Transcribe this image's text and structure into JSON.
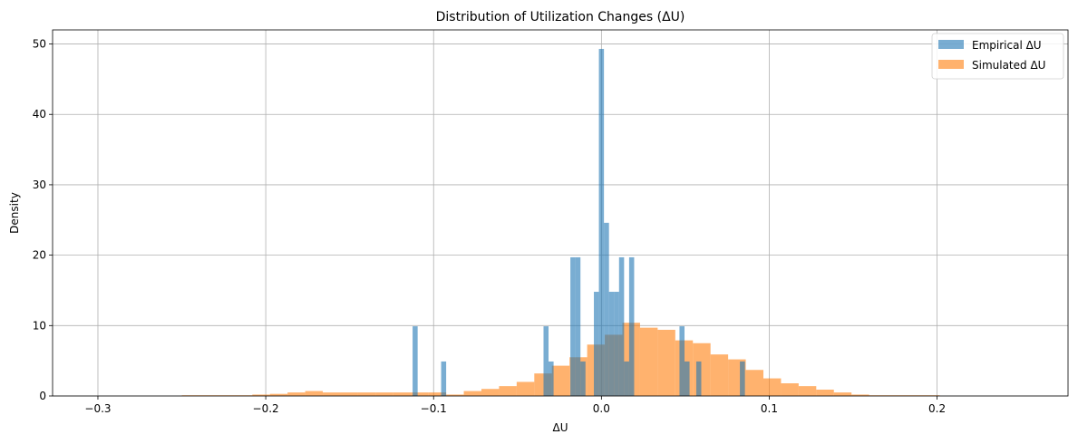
{
  "chart_data": {
    "type": "bar",
    "title": "Distribution of Utilization Changes (ΔU)",
    "xlabel": "ΔU",
    "ylabel": "Density",
    "xlim": [
      -0.327,
      0.278
    ],
    "ylim": [
      0,
      52
    ],
    "xticks": [
      -0.3,
      -0.2,
      -0.1,
      0.0,
      0.1,
      0.2
    ],
    "xtick_labels": [
      "−0.3",
      "−0.2",
      "−0.1",
      "0.0",
      "0.1",
      "0.2"
    ],
    "yticks": [
      0,
      10,
      20,
      30,
      40,
      50
    ],
    "ytick_labels": [
      "0",
      "10",
      "20",
      "30",
      "40",
      "50"
    ],
    "grid": true,
    "legend_position": "top-right",
    "series": [
      {
        "name": "Empirical ΔU",
        "color": "#1f77b4",
        "alpha": 0.6,
        "bins": [
          {
            "x0": -0.1125,
            "x1": -0.1095,
            "value": 9.9
          },
          {
            "x0": -0.0955,
            "x1": -0.0925,
            "value": 4.9
          },
          {
            "x0": -0.0345,
            "x1": -0.0315,
            "value": 9.9
          },
          {
            "x0": -0.0315,
            "x1": -0.0285,
            "value": 4.9
          },
          {
            "x0": -0.0185,
            "x1": -0.0155,
            "value": 19.7
          },
          {
            "x0": -0.0155,
            "x1": -0.0125,
            "value": 19.7
          },
          {
            "x0": -0.0125,
            "x1": -0.0095,
            "value": 4.9
          },
          {
            "x0": -0.0045,
            "x1": -0.0015,
            "value": 14.8
          },
          {
            "x0": -0.0015,
            "x1": 0.0015,
            "value": 49.3
          },
          {
            "x0": 0.0015,
            "x1": 0.0045,
            "value": 24.6
          },
          {
            "x0": 0.0045,
            "x1": 0.0075,
            "value": 14.8
          },
          {
            "x0": 0.0075,
            "x1": 0.0105,
            "value": 14.8
          },
          {
            "x0": 0.0105,
            "x1": 0.0135,
            "value": 19.7
          },
          {
            "x0": 0.0135,
            "x1": 0.0165,
            "value": 4.9
          },
          {
            "x0": 0.0165,
            "x1": 0.0195,
            "value": 19.7
          },
          {
            "x0": 0.0465,
            "x1": 0.0495,
            "value": 9.9
          },
          {
            "x0": 0.0495,
            "x1": 0.0525,
            "value": 4.9
          },
          {
            "x0": 0.0565,
            "x1": 0.0595,
            "value": 4.9
          },
          {
            "x0": 0.0825,
            "x1": 0.0855,
            "value": 4.9
          }
        ]
      },
      {
        "name": "Simulated ΔU",
        "color": "#ff7f0e",
        "alpha": 0.6,
        "bins": [
          {
            "x0": -0.25,
            "x1": -0.2395,
            "value": 0.1
          },
          {
            "x0": -0.2395,
            "x1": -0.229,
            "value": 0.1
          },
          {
            "x0": -0.229,
            "x1": -0.2185,
            "value": 0.1
          },
          {
            "x0": -0.2185,
            "x1": -0.208,
            "value": 0.1
          },
          {
            "x0": -0.208,
            "x1": -0.1975,
            "value": 0.2
          },
          {
            "x0": -0.1975,
            "x1": -0.187,
            "value": 0.3
          },
          {
            "x0": -0.187,
            "x1": -0.1765,
            "value": 0.5
          },
          {
            "x0": -0.1765,
            "x1": -0.166,
            "value": 0.7
          },
          {
            "x0": -0.166,
            "x1": -0.1555,
            "value": 0.5
          },
          {
            "x0": -0.1555,
            "x1": -0.145,
            "value": 0.5
          },
          {
            "x0": -0.145,
            "x1": -0.1345,
            "value": 0.5
          },
          {
            "x0": -0.1345,
            "x1": -0.124,
            "value": 0.5
          },
          {
            "x0": -0.124,
            "x1": -0.1135,
            "value": 0.5
          },
          {
            "x0": -0.1135,
            "x1": -0.103,
            "value": 0.5
          },
          {
            "x0": -0.103,
            "x1": -0.0925,
            "value": 0.5
          },
          {
            "x0": -0.0925,
            "x1": -0.082,
            "value": 0.2
          },
          {
            "x0": -0.082,
            "x1": -0.0715,
            "value": 0.7
          },
          {
            "x0": -0.0715,
            "x1": -0.061,
            "value": 1.0
          },
          {
            "x0": -0.061,
            "x1": -0.0505,
            "value": 1.4
          },
          {
            "x0": -0.0505,
            "x1": -0.04,
            "value": 2.0
          },
          {
            "x0": -0.04,
            "x1": -0.0295,
            "value": 3.2
          },
          {
            "x0": -0.0295,
            "x1": -0.019,
            "value": 4.3
          },
          {
            "x0": -0.019,
            "x1": -0.0085,
            "value": 5.5
          },
          {
            "x0": -0.0085,
            "x1": 0.002,
            "value": 7.3
          },
          {
            "x0": 0.002,
            "x1": 0.0125,
            "value": 8.7
          },
          {
            "x0": 0.0125,
            "x1": 0.023,
            "value": 10.4
          },
          {
            "x0": 0.023,
            "x1": 0.0335,
            "value": 9.7
          },
          {
            "x0": 0.0335,
            "x1": 0.044,
            "value": 9.4
          },
          {
            "x0": 0.044,
            "x1": 0.0545,
            "value": 7.9
          },
          {
            "x0": 0.0545,
            "x1": 0.065,
            "value": 7.5
          },
          {
            "x0": 0.065,
            "x1": 0.0755,
            "value": 5.9
          },
          {
            "x0": 0.0755,
            "x1": 0.086,
            "value": 5.2
          },
          {
            "x0": 0.086,
            "x1": 0.0965,
            "value": 3.7
          },
          {
            "x0": 0.0965,
            "x1": 0.107,
            "value": 2.5
          },
          {
            "x0": 0.107,
            "x1": 0.1175,
            "value": 1.8
          },
          {
            "x0": 0.1175,
            "x1": 0.128,
            "value": 1.4
          },
          {
            "x0": 0.128,
            "x1": 0.1385,
            "value": 0.9
          },
          {
            "x0": 0.1385,
            "x1": 0.149,
            "value": 0.5
          },
          {
            "x0": 0.149,
            "x1": 0.1595,
            "value": 0.2
          },
          {
            "x0": 0.1595,
            "x1": 0.17,
            "value": 0.1
          },
          {
            "x0": 0.17,
            "x1": 0.1805,
            "value": 0.1
          },
          {
            "x0": 0.1805,
            "x1": 0.191,
            "value": 0.1
          },
          {
            "x0": 0.191,
            "x1": 0.2015,
            "value": 0.1
          }
        ]
      }
    ]
  }
}
